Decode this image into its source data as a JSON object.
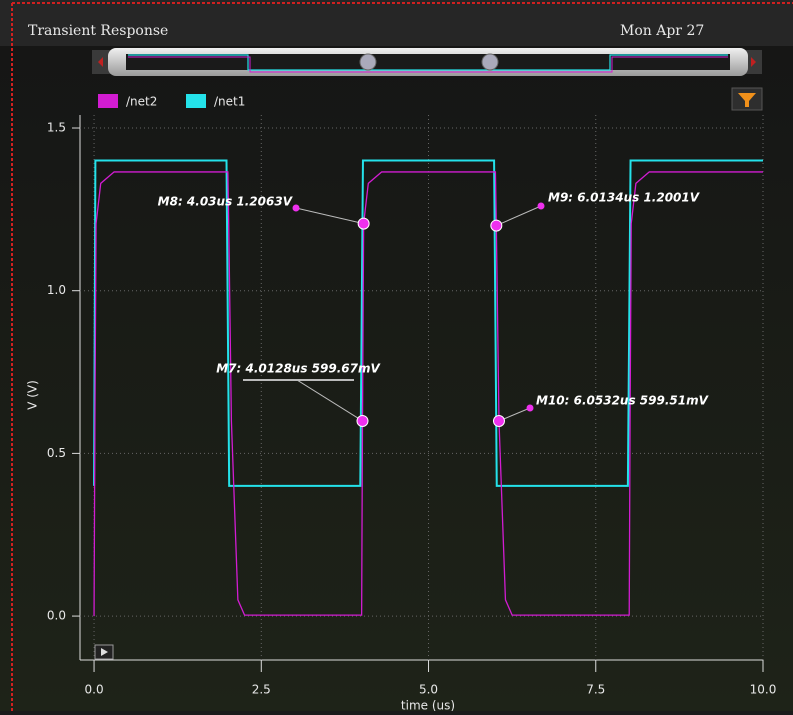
{
  "chart_data": {
    "type": "line",
    "title": "Transient Response",
    "date": "Mon Apr 27",
    "xlabel": "time (us)",
    "ylabel": "V (V)",
    "xlim": [
      -0.21,
      10.0
    ],
    "ylim": [
      -0.135,
      1.54
    ],
    "xticks": [
      {
        "value": 0,
        "label": "0.0"
      },
      {
        "value": 2.5,
        "label": "2.5"
      },
      {
        "value": 5,
        "label": "5.0"
      },
      {
        "value": 7.5,
        "label": "7.5"
      },
      {
        "value": 10,
        "label": "10.0"
      }
    ],
    "yticks": [
      {
        "value": 0,
        "label": "0.0"
      },
      {
        "value": 0.5,
        "label": "0.5"
      },
      {
        "value": 1,
        "label": "1.0"
      },
      {
        "value": 1.5,
        "label": "1.5"
      }
    ],
    "grid": true,
    "series": [
      {
        "name": "/net2",
        "color": "#d21cd2",
        "x": [
          0,
          0.0128,
          0.03,
          0.1,
          0.3,
          2.0,
          2.0134,
          2.0532,
          2.15,
          2.25,
          4.0,
          4.0128,
          4.03,
          4.1,
          4.3,
          6.0,
          6.0134,
          6.0532,
          6.15,
          6.25,
          8.0,
          8.0128,
          8.03,
          8.1,
          8.3,
          10.0
        ],
        "values": [
          0,
          0.6,
          1.206,
          1.33,
          1.365,
          1.365,
          1.2,
          0.6,
          0.05,
          0.003,
          0.003,
          0.5997,
          1.2063,
          1.33,
          1.365,
          1.365,
          1.2001,
          0.5995,
          0.05,
          0.003,
          0.003,
          0.6,
          1.206,
          1.33,
          1.365,
          1.365
        ]
      },
      {
        "name": "/net1",
        "color": "#24e2ea",
        "x": [
          0,
          0.02,
          1.98,
          2.02,
          3.98,
          4.02,
          5.98,
          6.02,
          7.98,
          8.02,
          10.0
        ],
        "values": [
          0.4,
          1.4,
          1.4,
          0.4,
          0.4,
          1.4,
          1.4,
          0.4,
          0.4,
          1.4,
          1.4
        ]
      }
    ],
    "markers": [
      {
        "label": "M8: 4.03us 1.2063V",
        "x": 4.03,
        "y": 1.2063
      },
      {
        "label": "M9: 6.0134us 1.2001V",
        "x": 6.0134,
        "y": 1.2001
      },
      {
        "label": "M7: 4.0128us 599.67mV",
        "x": 4.0128,
        "y": 0.59967
      },
      {
        "label": "M10: 6.0532us 599.51mV",
        "x": 6.0532,
        "y": 0.59951
      }
    ]
  }
}
